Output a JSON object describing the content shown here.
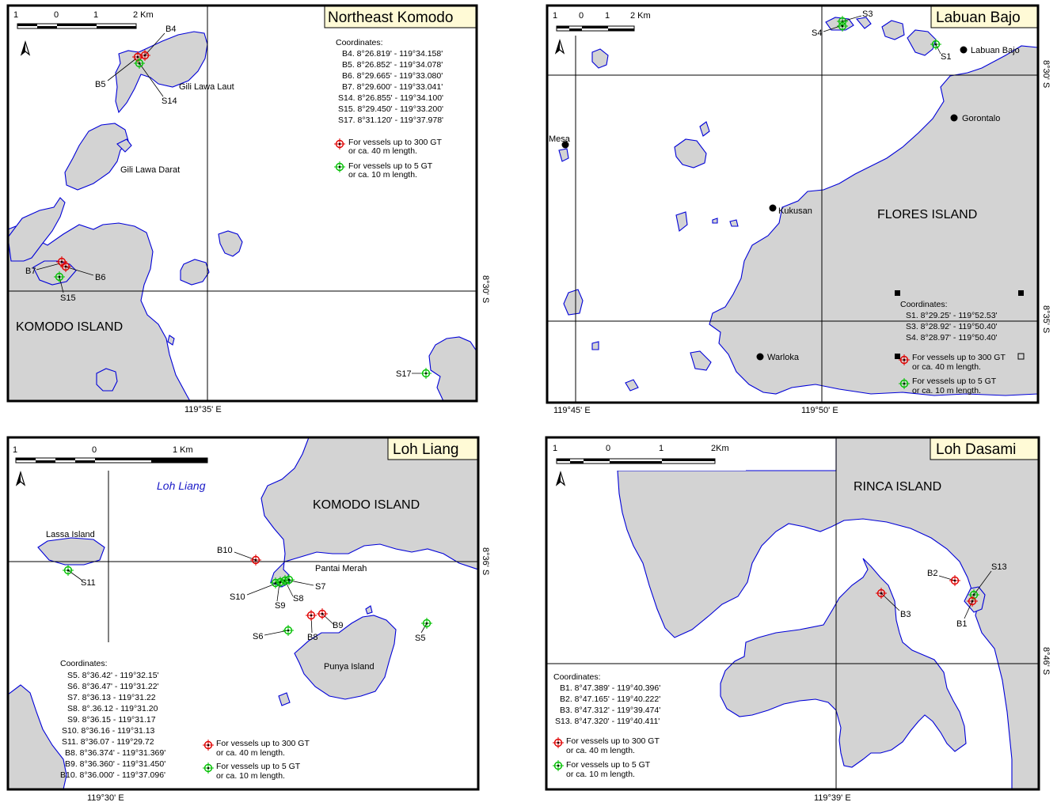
{
  "panels": {
    "p1": {
      "title": "Northeast Komodo",
      "scale": [
        "1",
        "0",
        "1",
        "2 Km"
      ],
      "lat_label": "8°30' S",
      "lon_label": "119°35' E",
      "places": [
        "Gili Lawa Laut",
        "Gili Lawa Darat",
        "KOMODO ISLAND"
      ],
      "points": [
        "B4",
        "B5",
        "S14",
        "B7",
        "B6",
        "S15",
        "S17"
      ],
      "coords_heading": "Coordinates:",
      "coords": [
        "B4. 8°26.819' - 119°34.158'",
        "B5. 8°26.852' - 119°34.078'",
        "B6. 8°29.665' - 119°33.080'",
        "B7. 8°29.600' - 119°33.041'",
        "S14. 8°26.855' - 119°34.100'",
        "S15. 8°29.450' - 119°33.200'",
        "S17. 8°31.120' - 119°37.978'"
      ],
      "legend": {
        "red_1": "For vessels up to  300 GT",
        "red_2": "or ca. 40 m length.",
        "green_1": "For vessels up to  5 GT",
        "green_2": "or ca. 10 m length."
      }
    },
    "p2": {
      "title": "Labuan Bajo",
      "scale": [
        "1",
        "0",
        "1",
        "2 Km"
      ],
      "lat_label_1": "8°30' S",
      "lat_label_2": "8°35' S",
      "lon_label_1": "119°45' E",
      "lon_label_2": "119°50' E",
      "places": [
        "Labuan Bajo",
        "Gorontalo",
        "Mesa",
        "Kukusan",
        "FLORES ISLAND",
        "Warloka"
      ],
      "points": [
        "S3",
        "S4",
        "S1"
      ],
      "coords_heading": "Coordinates:",
      "coords": [
        "S1. 8°29.25' - 119°52.53'",
        "S3. 8°28.92' - 119°50.40'",
        "S4. 8°28.97' - 119°50.40'"
      ],
      "legend": {
        "red_1": "For vessels up to  300 GT",
        "red_2": "or ca. 40 m length.",
        "green_1": "For vessels up to  5 GT",
        "green_2": "or ca. 10 m length."
      }
    },
    "p3": {
      "title": "Loh Liang",
      "scale": [
        "1",
        "0",
        "1 Km"
      ],
      "lat_label": "8°36' S",
      "lon_label": "119°30' E",
      "places": [
        "Loh Liang",
        "KOMODO ISLAND",
        "Lassa Island",
        "Pantai Merah",
        "Punya Island"
      ],
      "points": [
        "B10",
        "S11",
        "S10",
        "S9",
        "S8",
        "S7",
        "S6",
        "B8",
        "B9",
        "S5"
      ],
      "coords_heading": "Coordinates:",
      "coords": [
        "S5. 8°36.42' - 119°32.15'",
        "S6. 8°36.47' - 119°31.22'",
        "S7. 8°36.13 - 119°31.22",
        "S8. 8°.36.12 - 119°31.20",
        "S9. 8°36.15 - 119°31.17",
        "S10. 8°36.16 - 119°31.13",
        "S11. 8°36.07 - 119°29.72",
        "B8. 8°36.374' - 119°31.369'",
        "B9. 8°36.360' - 119°31.450'",
        "B10. 8°36.000' - 119°37.096'"
      ],
      "legend": {
        "red_1": "For vessels up to  300 GT",
        "red_2": "or ca. 40 m length.",
        "green_1": "For vessels up to  5 GT",
        "green_2": "or ca. 10 m length."
      }
    },
    "p4": {
      "title": "Loh Dasami",
      "scale": [
        "1",
        "0",
        "1",
        "2Km"
      ],
      "lat_label": "8°46' S",
      "lon_label": "119°39' E",
      "places": [
        "RINCA ISLAND"
      ],
      "points": [
        "B2",
        "S13",
        "B3",
        "B1"
      ],
      "coords_heading": "Coordinates:",
      "coords": [
        "B1. 8°47.389' - 119°40.396'",
        "B2. 8°47.165' - 119°40.222'",
        "B3. 8°47.312' - 119°39.474'",
        "S13. 8°47.320' - 119°40.411'"
      ],
      "legend": {
        "red_1": "For vessels up to  300 GT",
        "red_2": "or ca. 40 m length.",
        "green_1": "For vessels up to  5 GT",
        "green_2": "or ca. 10 m length."
      }
    }
  },
  "colors": {
    "land": "#d3d3d3",
    "coast": "#0000d8",
    "marker_large_vessel": "#e00000",
    "marker_small_vessel": "#00c000",
    "title_box": "#fffad6"
  },
  "icons": [
    "north-arrow-icon",
    "red-mooring-marker-icon",
    "green-mooring-marker-icon",
    "village-dot-icon"
  ]
}
